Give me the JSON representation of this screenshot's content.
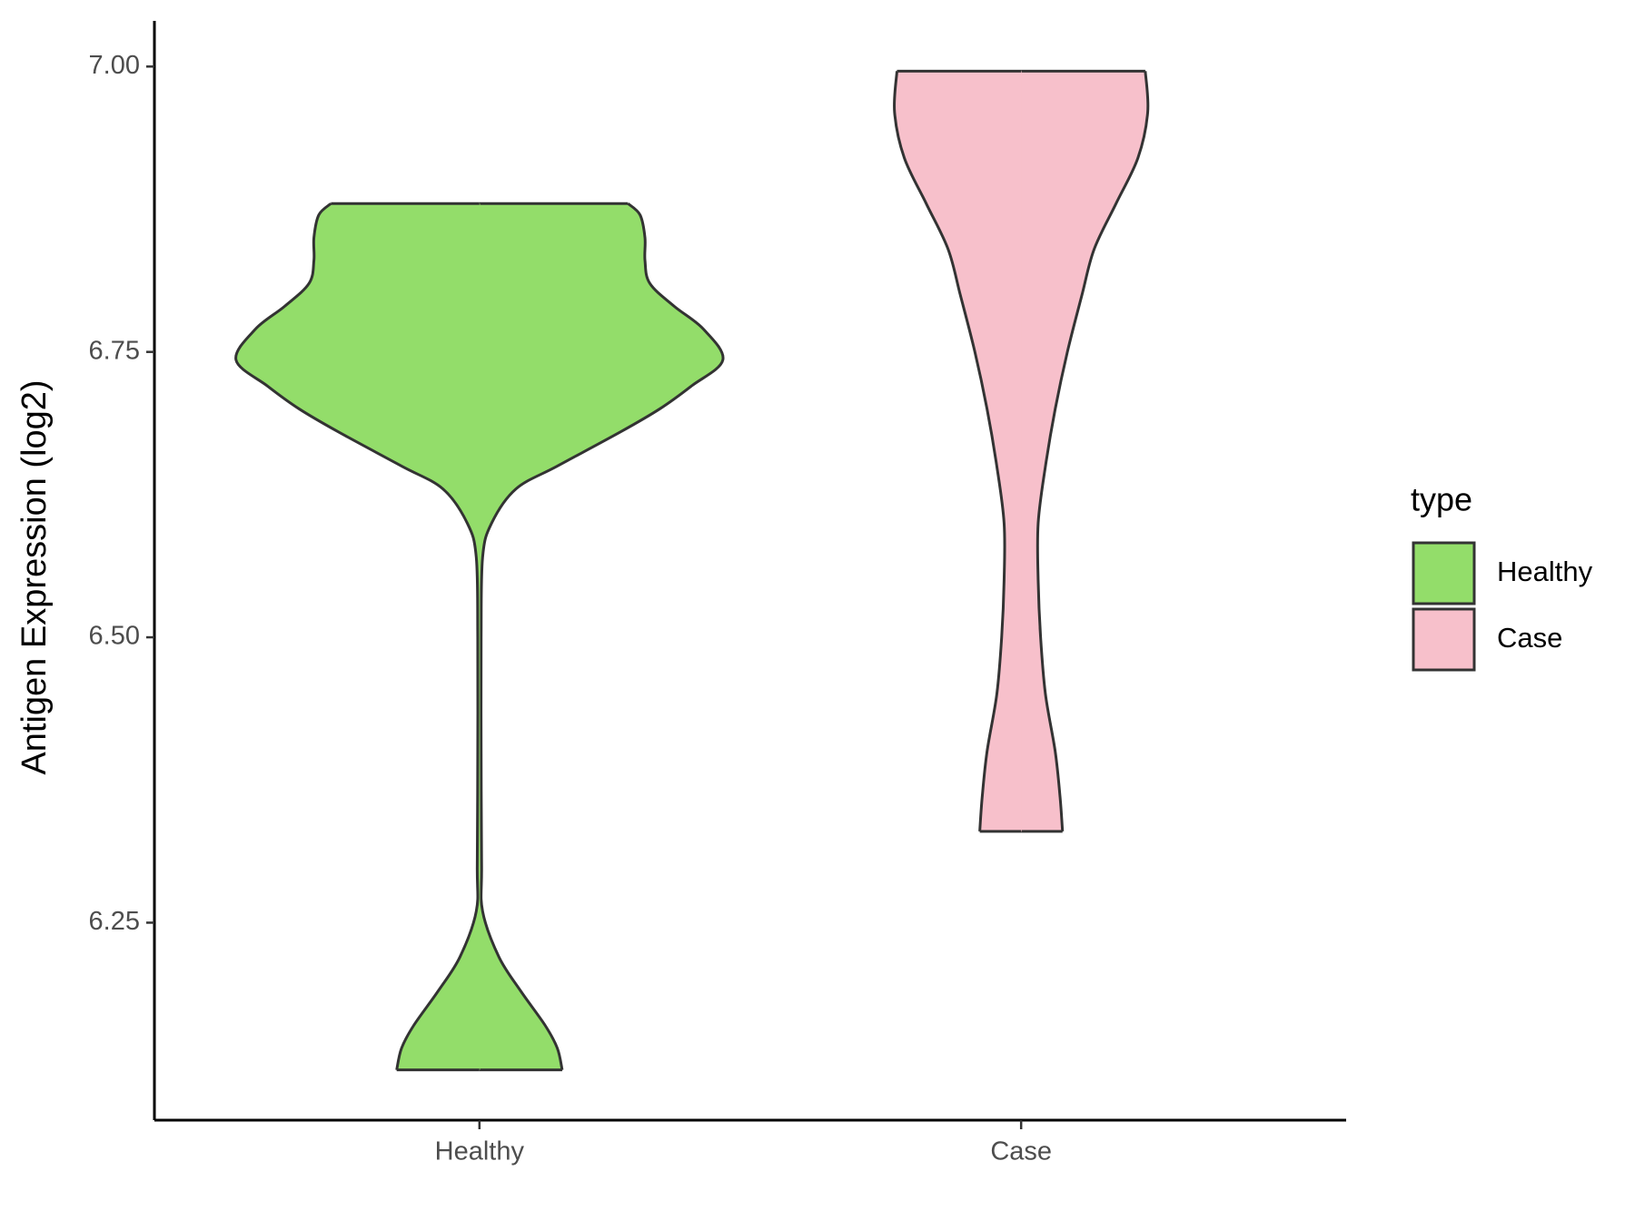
{
  "chart_data": {
    "type": "violin",
    "y_label": "Antigen Expression (log2)",
    "categories": [
      "Healthy",
      "Case"
    ],
    "legend_title": "type",
    "series": [
      {
        "name": "Healthy",
        "color": "#93dd6a",
        "y": [
          6.88,
          6.87,
          6.85,
          6.83,
          6.81,
          6.79,
          6.77,
          6.743,
          6.72,
          6.7,
          6.68,
          6.65,
          6.63,
          6.6,
          6.57,
          6.5,
          6.4,
          6.3,
          6.26,
          6.22,
          6.19,
          6.16,
          6.14,
          6.121
        ],
        "width": [
          0.61,
          0.66,
          0.68,
          0.68,
          0.7,
          0.8,
          0.92,
          1.0,
          0.87,
          0.74,
          0.58,
          0.32,
          0.15,
          0.05,
          0.013,
          0.007,
          0.007,
          0.009,
          0.013,
          0.08,
          0.17,
          0.27,
          0.32,
          0.34
        ]
      },
      {
        "name": "Case",
        "color": "#f7c0cb",
        "y": [
          6.996,
          6.96,
          6.92,
          6.88,
          6.84,
          6.8,
          6.75,
          6.7,
          6.65,
          6.6,
          6.55,
          6.5,
          6.45,
          6.4,
          6.36,
          6.33
        ],
        "width": [
          0.51,
          0.52,
          0.48,
          0.39,
          0.3,
          0.25,
          0.19,
          0.14,
          0.1,
          0.07,
          0.07,
          0.08,
          0.1,
          0.14,
          0.16,
          0.17
        ]
      }
    ],
    "ylim": [
      6.077,
      7.04
    ],
    "yticks": [
      {
        "value": 6.25,
        "label": "6.25"
      },
      {
        "value": 6.5,
        "label": "6.50"
      },
      {
        "value": 6.75,
        "label": "6.75"
      },
      {
        "value": 7,
        "label": "7.00"
      }
    ],
    "legend": "right",
    "grid": false
  }
}
